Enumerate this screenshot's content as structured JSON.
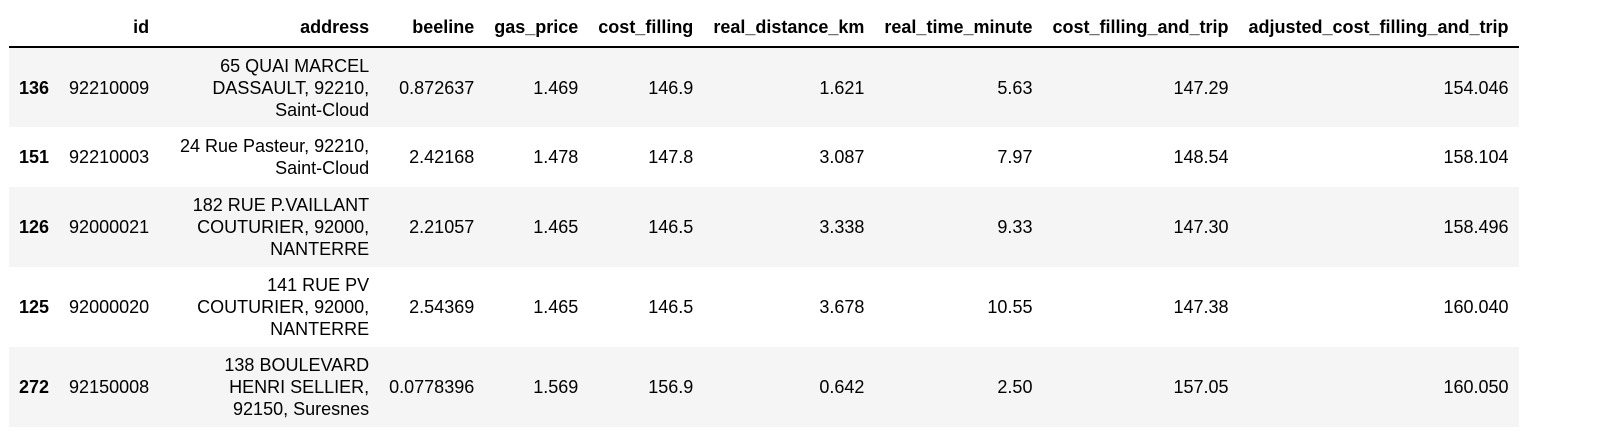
{
  "columns": {
    "index": "",
    "id": "id",
    "address": "address",
    "beeline": "beeline",
    "gas_price": "gas_price",
    "cost_filling": "cost_filling",
    "real_distance_km": "real_distance_km",
    "real_time_minute": "real_time_minute",
    "cost_filling_and_trip": "cost_filling_and_trip",
    "adjusted_cost_filling_and_trip": "adjusted_cost_filling_and_trip"
  },
  "rows": [
    {
      "index": "136",
      "id": "92210009",
      "address": [
        "65 QUAI MARCEL",
        "DASSAULT, 92210,",
        "Saint-Cloud"
      ],
      "beeline": "0.872637",
      "gas_price": "1.469",
      "cost_filling": "146.9",
      "real_distance_km": "1.621",
      "real_time_minute": "5.63",
      "cost_filling_and_trip": "147.29",
      "adjusted_cost_filling_and_trip": "154.046"
    },
    {
      "index": "151",
      "id": "92210003",
      "address": [
        "24 Rue Pasteur, 92210,",
        "Saint-Cloud"
      ],
      "beeline": "2.42168",
      "gas_price": "1.478",
      "cost_filling": "147.8",
      "real_distance_km": "3.087",
      "real_time_minute": "7.97",
      "cost_filling_and_trip": "148.54",
      "adjusted_cost_filling_and_trip": "158.104"
    },
    {
      "index": "126",
      "id": "92000021",
      "address": [
        "182 RUE P.VAILLANT",
        "COUTURIER, 92000,",
        "NANTERRE"
      ],
      "beeline": "2.21057",
      "gas_price": "1.465",
      "cost_filling": "146.5",
      "real_distance_km": "3.338",
      "real_time_minute": "9.33",
      "cost_filling_and_trip": "147.30",
      "adjusted_cost_filling_and_trip": "158.496"
    },
    {
      "index": "125",
      "id": "92000020",
      "address": [
        "141 RUE PV",
        "COUTURIER, 92000,",
        "NANTERRE"
      ],
      "beeline": "2.54369",
      "gas_price": "1.465",
      "cost_filling": "146.5",
      "real_distance_km": "3.678",
      "real_time_minute": "10.55",
      "cost_filling_and_trip": "147.38",
      "adjusted_cost_filling_and_trip": "160.040"
    },
    {
      "index": "272",
      "id": "92150008",
      "address": [
        "138 BOULEVARD",
        "HENRI SELLIER,",
        "92150, Suresnes"
      ],
      "beeline": "0.0778396",
      "gas_price": "1.569",
      "cost_filling": "156.9",
      "real_distance_km": "0.642",
      "real_time_minute": "2.50",
      "cost_filling_and_trip": "157.05",
      "adjusted_cost_filling_and_trip": "160.050"
    }
  ]
}
